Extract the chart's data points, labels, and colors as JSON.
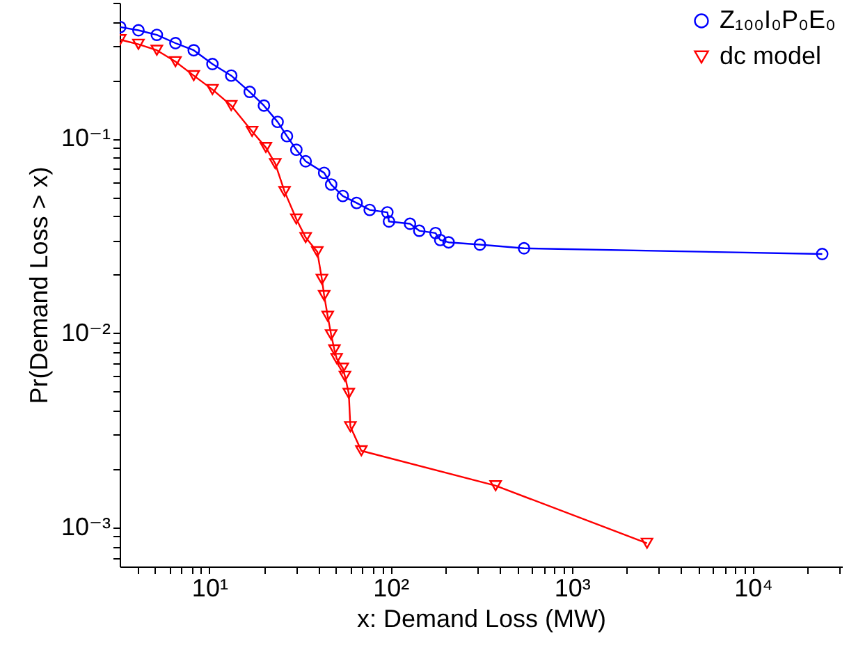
{
  "chart_data": {
    "type": "line",
    "xlabel": "x: Demand Loss (MW)",
    "ylabel": "Pr(Demand Loss > x)",
    "log": "xy",
    "grid": false,
    "legend": "top right",
    "xlim": [
      3.2,
      31000
    ],
    "ylim": [
      0.00063,
      0.5
    ],
    "xticks": [
      {
        "value": 4,
        "label": null
      },
      {
        "value": 5,
        "label": null
      },
      {
        "value": 6,
        "label": null
      },
      {
        "value": 7,
        "label": null
      },
      {
        "value": 8,
        "label": null
      },
      {
        "value": 9,
        "label": null
      },
      {
        "value": 10,
        "label": "10¹"
      },
      {
        "value": 20,
        "label": null
      },
      {
        "value": 30,
        "label": null
      },
      {
        "value": 40,
        "label": null
      },
      {
        "value": 50,
        "label": null
      },
      {
        "value": 60,
        "label": null
      },
      {
        "value": 70,
        "label": null
      },
      {
        "value": 80,
        "label": null
      },
      {
        "value": 90,
        "label": null
      },
      {
        "value": 100,
        "label": "10²"
      },
      {
        "value": 200,
        "label": null
      },
      {
        "value": 300,
        "label": null
      },
      {
        "value": 400,
        "label": null
      },
      {
        "value": 500,
        "label": null
      },
      {
        "value": 600,
        "label": null
      },
      {
        "value": 700,
        "label": null
      },
      {
        "value": 800,
        "label": null
      },
      {
        "value": 900,
        "label": null
      },
      {
        "value": 1000,
        "label": "10³"
      },
      {
        "value": 2000,
        "label": null
      },
      {
        "value": 3000,
        "label": null
      },
      {
        "value": 4000,
        "label": null
      },
      {
        "value": 5000,
        "label": null
      },
      {
        "value": 6000,
        "label": null
      },
      {
        "value": 7000,
        "label": null
      },
      {
        "value": 8000,
        "label": null
      },
      {
        "value": 9000,
        "label": null
      },
      {
        "value": 10000,
        "label": "10⁴"
      },
      {
        "value": 20000,
        "label": null
      },
      {
        "value": 30000,
        "label": null
      }
    ],
    "yticks": [
      {
        "value": 0.0007,
        "label": null
      },
      {
        "value": 0.0008,
        "label": null
      },
      {
        "value": 0.0009,
        "label": null
      },
      {
        "value": 0.001,
        "label": "10⁻³"
      },
      {
        "value": 0.002,
        "label": null
      },
      {
        "value": 0.003,
        "label": null
      },
      {
        "value": 0.004,
        "label": null
      },
      {
        "value": 0.005,
        "label": null
      },
      {
        "value": 0.006,
        "label": null
      },
      {
        "value": 0.007,
        "label": null
      },
      {
        "value": 0.008,
        "label": null
      },
      {
        "value": 0.009,
        "label": null
      },
      {
        "value": 0.01,
        "label": "10⁻²"
      },
      {
        "value": 0.02,
        "label": null
      },
      {
        "value": 0.03,
        "label": null
      },
      {
        "value": 0.04,
        "label": null
      },
      {
        "value": 0.05,
        "label": null
      },
      {
        "value": 0.06,
        "label": null
      },
      {
        "value": 0.07,
        "label": null
      },
      {
        "value": 0.08,
        "label": null
      },
      {
        "value": 0.09,
        "label": null
      },
      {
        "value": 0.1,
        "label": "10⁻¹"
      },
      {
        "value": 0.2,
        "label": null
      },
      {
        "value": 0.3,
        "label": null
      },
      {
        "value": 0.4,
        "label": null
      },
      {
        "value": 0.5,
        "label": null
      }
    ],
    "series": [
      {
        "name": "Z₁₀₀I₀P₀E₀",
        "color": "#0000ff",
        "marker": "circle",
        "x": [
          3.22,
          4.06,
          5.13,
          6.5,
          8.2,
          10.4,
          13.2,
          16.7,
          20,
          23.8,
          26.8,
          30.2,
          34,
          43,
          47,
          54.5,
          65,
          76.7,
          96,
          98,
          128,
          144,
          177,
          188,
          209,
          311,
          545,
          24100
        ],
        "values": [
          0.375,
          0.361,
          0.342,
          0.31,
          0.285,
          0.242,
          0.211,
          0.174,
          0.148,
          0.122,
          0.103,
          0.0877,
          0.0765,
          0.0667,
          0.0581,
          0.0507,
          0.0467,
          0.043,
          0.0418,
          0.0375,
          0.0365,
          0.0336,
          0.0327,
          0.0301,
          0.0293,
          0.0285,
          0.0273,
          0.0255
        ]
      },
      {
        "name": "dc model",
        "color": "#ff0000",
        "marker": "triangle",
        "x": [
          3.22,
          4.06,
          5.13,
          6.5,
          8.2,
          10.4,
          13.2,
          17.2,
          20.5,
          23.1,
          26,
          30.2,
          34,
          39.4,
          41.8,
          43,
          45,
          47,
          49,
          50.4,
          54.5,
          56,
          58.8,
          60,
          69,
          380,
          2600
        ],
        "values": [
          0.323,
          0.306,
          0.285,
          0.249,
          0.211,
          0.179,
          0.148,
          0.109,
          0.0901,
          0.0744,
          0.0535,
          0.0386,
          0.031,
          0.0262,
          0.0189,
          0.0156,
          0.0122,
          0.0098,
          0.0082,
          0.0074,
          0.0066,
          0.006,
          0.0049,
          0.0033,
          0.00248,
          0.00164,
          0.00083
        ]
      }
    ]
  }
}
